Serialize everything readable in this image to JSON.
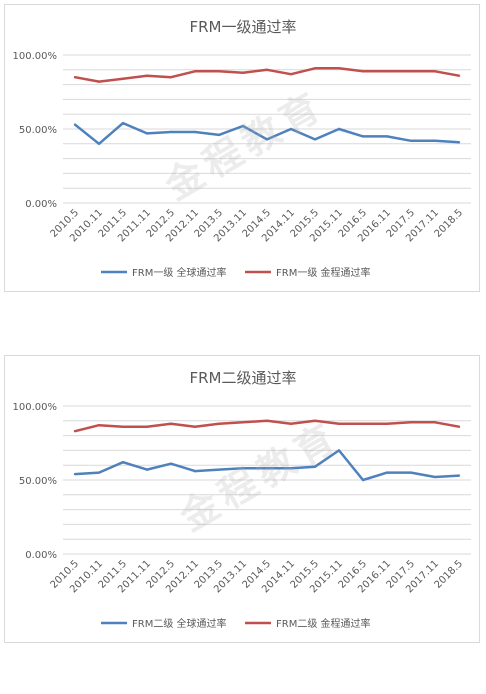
{
  "watermark": "金程教育",
  "chart_data": [
    {
      "type": "line",
      "title": "FRM一级通过率",
      "categories": [
        "2010.5",
        "2010.11",
        "2011.5",
        "2011.11",
        "2012.5",
        "2012.11",
        "2013.5",
        "2013.11",
        "2014.5",
        "2014.11",
        "2015.5",
        "2015.11",
        "2016.5",
        "2016.11",
        "2017.5",
        "2017.11",
        "2018.5"
      ],
      "ylim": [
        0,
        100
      ],
      "yticks": [
        "0.00%",
        "50.00%",
        "100.00%"
      ],
      "grid": true,
      "legend": "bottom",
      "series": [
        {
          "name": "FRM一级 全球通过率",
          "color": "#4f81bd",
          "values": [
            53,
            40,
            54,
            47,
            48,
            48,
            46,
            52,
            43,
            50,
            43,
            50,
            45,
            45,
            42,
            42,
            41
          ]
        },
        {
          "name": "FRM一级 金程通过率",
          "color": "#c0504d",
          "values": [
            85,
            82,
            84,
            86,
            85,
            89,
            89,
            88,
            90,
            87,
            91,
            91,
            89,
            89,
            89,
            89,
            86
          ]
        }
      ]
    },
    {
      "type": "line",
      "title": "FRM二级通过率",
      "categories": [
        "2010.5",
        "2010.11",
        "2011.5",
        "2011.11",
        "2012.5",
        "2012.11",
        "2013.5",
        "2013.11",
        "2014.5",
        "2014.11",
        "2015.5",
        "2015.11",
        "2016.5",
        "2016.11",
        "2017.5",
        "2017.11",
        "2018.5"
      ],
      "ylim": [
        0,
        100
      ],
      "yticks": [
        "0.00%",
        "50.00%",
        "100.00%"
      ],
      "grid": true,
      "legend": "bottom",
      "series": [
        {
          "name": "FRM二级 全球通过率",
          "color": "#4f81bd",
          "values": [
            54,
            55,
            62,
            57,
            61,
            56,
            57,
            58,
            58,
            58,
            59,
            70,
            50,
            55,
            55,
            52,
            53
          ]
        },
        {
          "name": "FRM二级 金程通过率",
          "color": "#c0504d",
          "values": [
            83,
            87,
            86,
            86,
            88,
            86,
            88,
            89,
            90,
            88,
            90,
            88,
            88,
            88,
            89,
            89,
            86
          ]
        }
      ]
    }
  ]
}
